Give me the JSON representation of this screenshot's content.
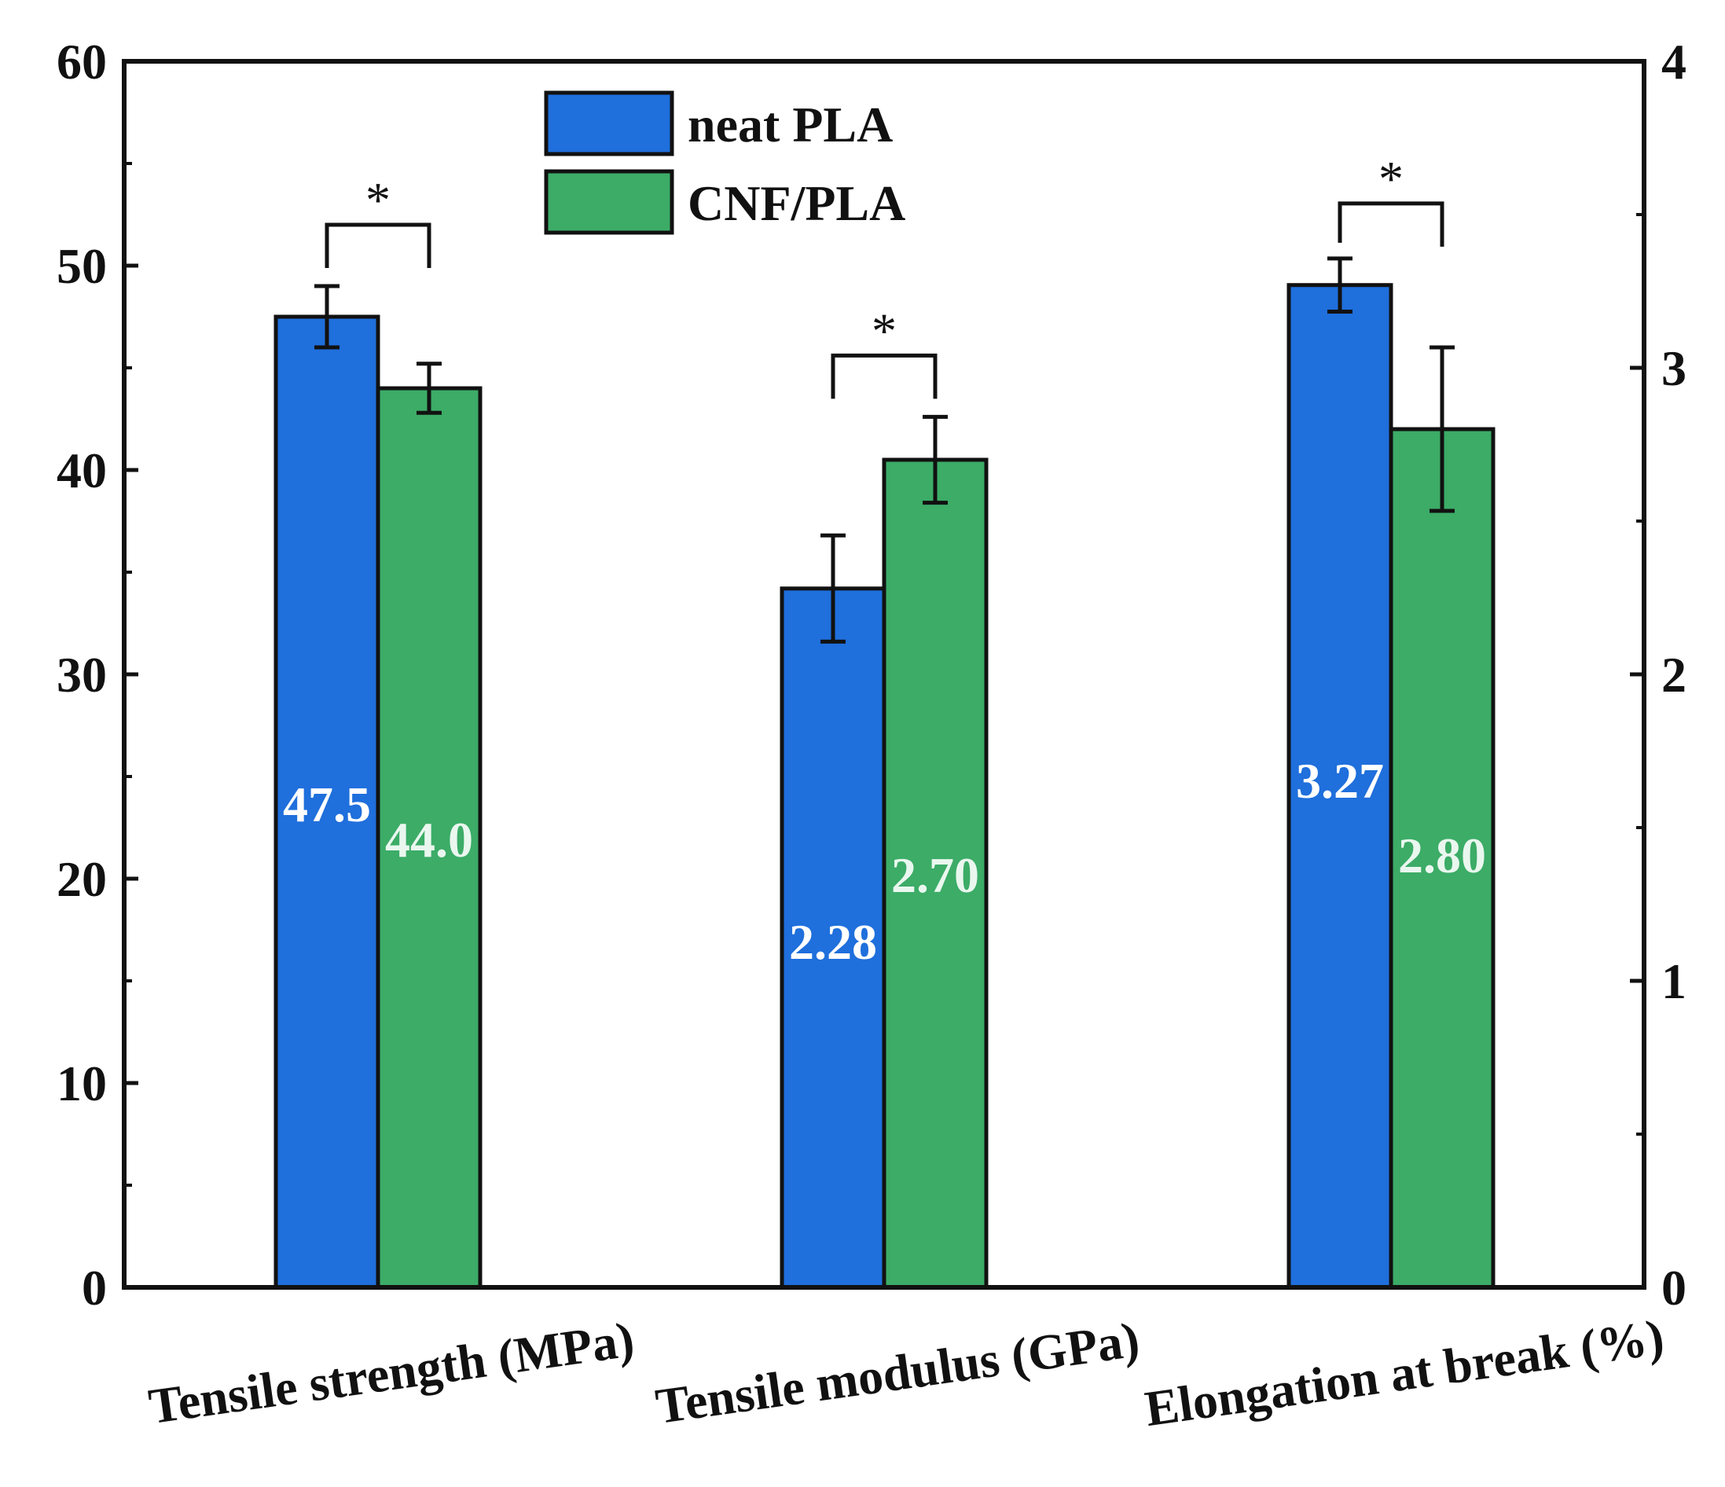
{
  "chart_data": {
    "type": "bar",
    "categories": [
      "Tensile strength (MPa)",
      "Tensile modulus (GPa)",
      "Elongation at break (%)"
    ],
    "series": [
      {
        "name": "neat PLA",
        "color": "#1f6fdc",
        "label_color": "#ffffff",
        "values": [
          47.5,
          2.28,
          3.27
        ],
        "plotted_on_left_axis": [
          47.5,
          34.2,
          49.05
        ],
        "error_left_axis": [
          1.5,
          2.6,
          1.3
        ],
        "labels": [
          "47.5",
          "2.28",
          "3.27"
        ]
      },
      {
        "name": "CNF/PLA",
        "color": "#3cac67",
        "label_color": "#eaf7ef",
        "values": [
          44.0,
          2.7,
          2.8
        ],
        "plotted_on_left_axis": [
          44.0,
          40.5,
          42.0
        ],
        "error_left_axis": [
          1.2,
          2.1,
          4.0
        ],
        "labels": [
          "44.0",
          "2.70",
          "2.80"
        ]
      }
    ],
    "significance": [
      {
        "category": 0,
        "marker": "*"
      },
      {
        "category": 1,
        "marker": "*"
      },
      {
        "category": 2,
        "marker": "*"
      }
    ],
    "left_axis": {
      "min": 0,
      "max": 60,
      "ticks": [
        "0",
        "10",
        "20",
        "30",
        "40",
        "50",
        "60"
      ]
    },
    "right_axis": {
      "min": 0,
      "max": 4,
      "ticks": [
        "0",
        "1",
        "2",
        "3",
        "4"
      ]
    },
    "xlabel": "",
    "ylabel": "",
    "legend": "top-center"
  }
}
